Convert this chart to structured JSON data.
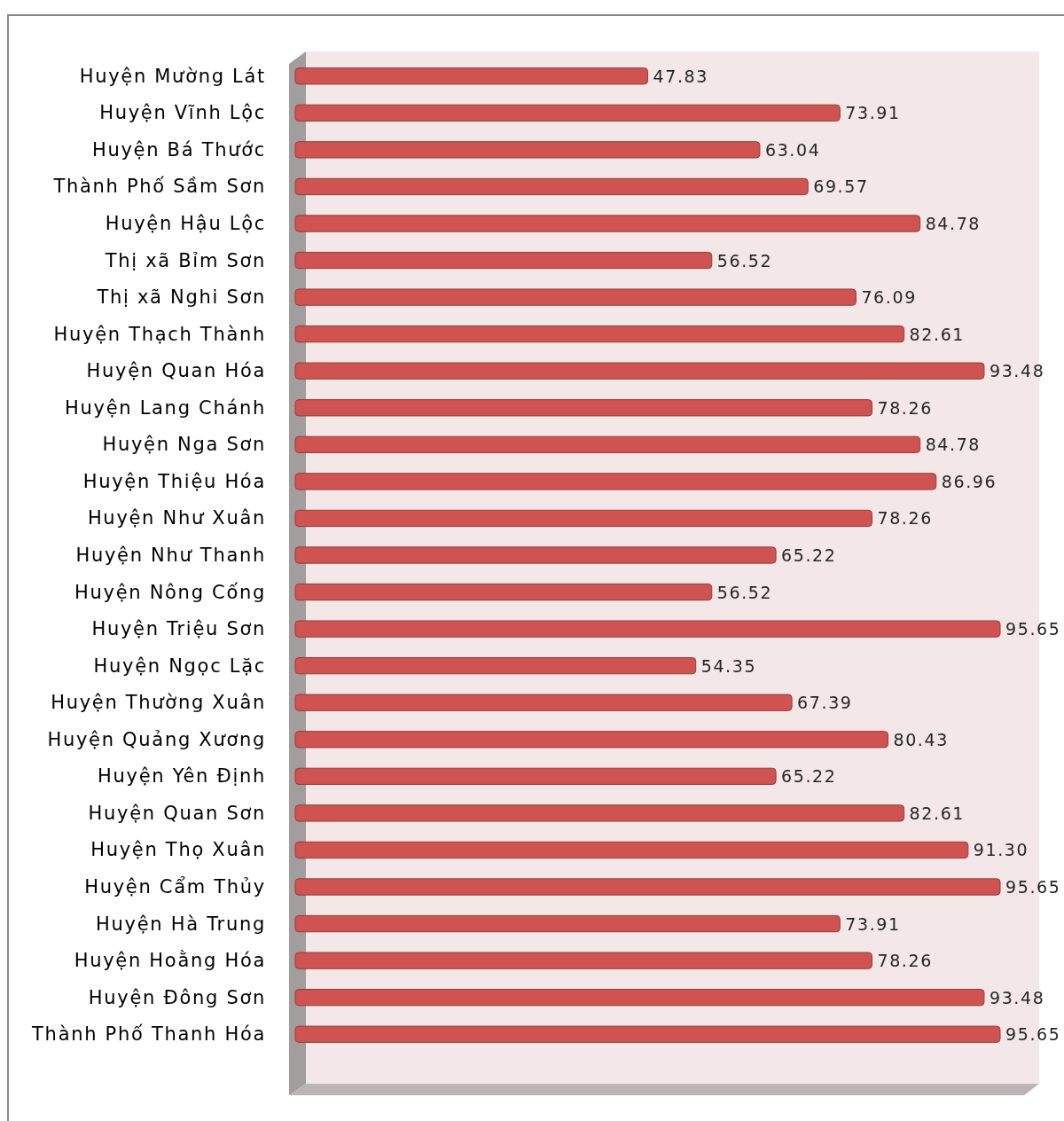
{
  "chart_data": {
    "type": "bar",
    "orientation": "horizontal",
    "categories": [
      "Huyện Mường Lát",
      "Huyện Vĩnh Lộc",
      "Huyện Bá Thước",
      "Thành Phố Sầm Sơn",
      "Huyện Hậu Lộc",
      "Thị xã Bỉm Sơn",
      "Thị xã Nghi Sơn",
      "Huyện Thạch Thành",
      "Huyện Quan Hóa",
      "Huyện Lang Chánh",
      "Huyện Nga Sơn",
      "Huyện Thiệu Hóa",
      "Huyện Như Xuân",
      "Huyện Như Thanh",
      "Huyện Nông Cống",
      "Huyện Triệu Sơn",
      "Huyện Ngọc Lặc",
      "Huyện Thường Xuân",
      "Huyện Quảng Xương",
      "Huyện Yên Định",
      "Huyện Quan Sơn",
      "Huyện Thọ Xuân",
      "Huyện Cẩm Thủy",
      "Huyện Hà Trung",
      "Huyện Hoằng Hóa",
      "Huyện Đông Sơn",
      "Thành Phố Thanh Hóa"
    ],
    "values": [
      47.83,
      73.91,
      63.04,
      69.57,
      84.78,
      56.52,
      76.09,
      82.61,
      93.48,
      78.26,
      84.78,
      86.96,
      78.26,
      65.22,
      56.52,
      95.65,
      54.35,
      67.39,
      80.43,
      65.22,
      82.61,
      91.3,
      95.65,
      73.91,
      78.26,
      93.48,
      95.65
    ],
    "value_labels": [
      "47.83",
      "73.91",
      "63.04",
      "69.57",
      "84.78",
      "56.52",
      "76.09",
      "82.61",
      "93.48",
      "78.26",
      "84.78",
      "86.96",
      "78.26",
      "65.22",
      "56.52",
      "95.65",
      "54.35",
      "67.39",
      "80.43",
      "65.22",
      "82.61",
      "91.30",
      "95.65",
      "73.91",
      "78.26",
      "93.48",
      "95.65"
    ],
    "color": "#cf5350",
    "tick_labels": "y"
  }
}
